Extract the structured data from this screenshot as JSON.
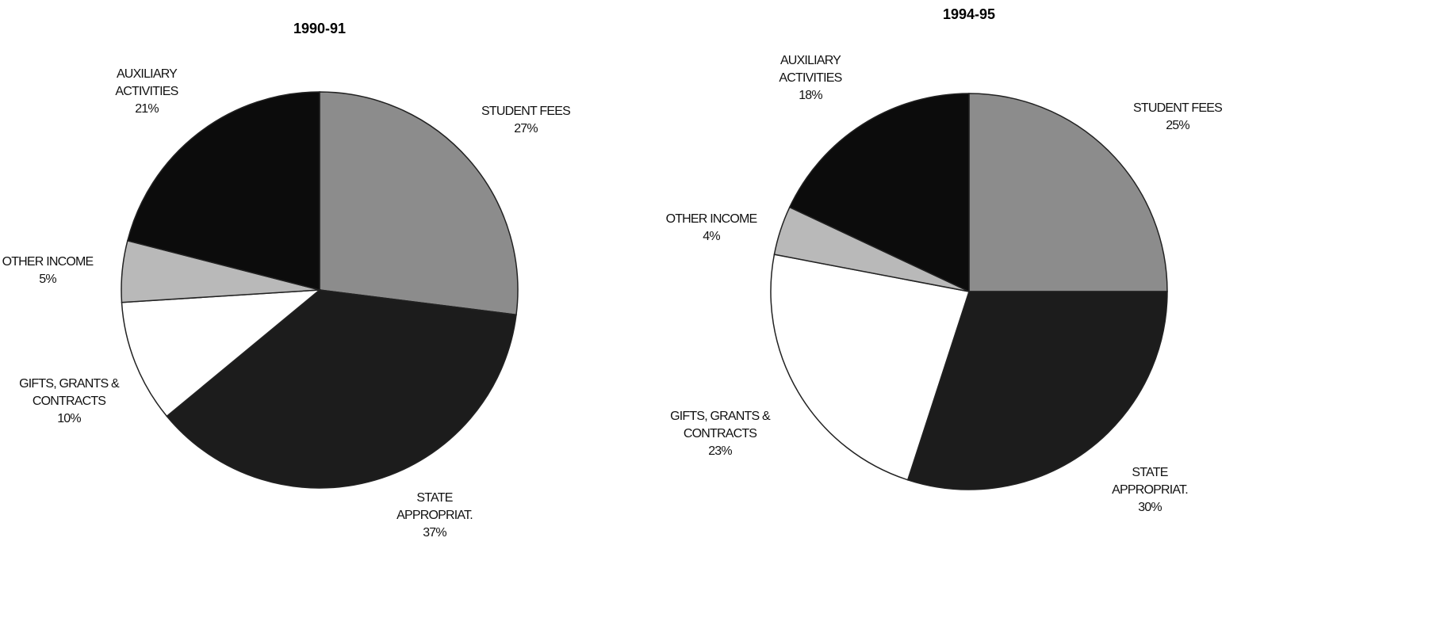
{
  "chart_data": [
    {
      "type": "pie",
      "title": "1990-91",
      "categories": [
        "STUDENT FEES",
        "STATE APPROPRIAT.",
        "GIFTS, GRANTS & CONTRACTS",
        "OTHER INCOME",
        "AUXILIARY ACTIVITIES"
      ],
      "values": [
        27,
        37,
        10,
        5,
        21
      ],
      "value_labels": [
        "27%",
        "37%",
        "10%",
        "5%",
        "21%"
      ],
      "colors": [
        "#8c8c8c",
        "#1c1c1c",
        "#ffffff",
        "#b9b9b9",
        "#0c0c0c"
      ]
    },
    {
      "type": "pie",
      "title": "1994-95",
      "categories": [
        "STUDENT FEES",
        "STATE APPROPRIAT.",
        "GIFTS, GRANTS & CONTRACTS",
        "OTHER INCOME",
        "AUXILIARY ACTIVITIES"
      ],
      "values": [
        25,
        30,
        23,
        4,
        18
      ],
      "value_labels": [
        "25%",
        "30%",
        "23%",
        "4%",
        "18%"
      ],
      "colors": [
        "#8c8c8c",
        "#1c1c1c",
        "#ffffff",
        "#b9b9b9",
        "#0c0c0c"
      ]
    }
  ]
}
